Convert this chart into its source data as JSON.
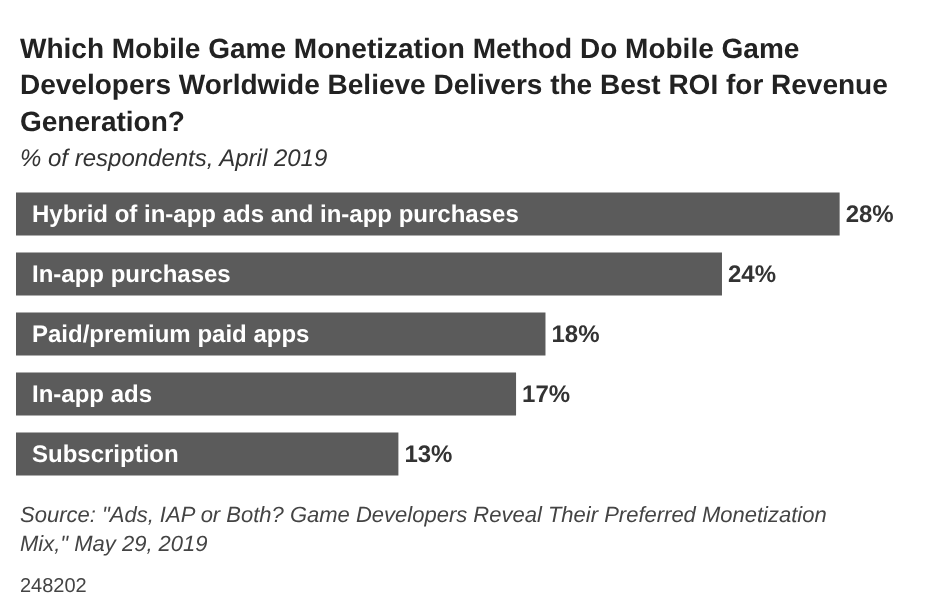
{
  "chart_data": {
    "type": "bar",
    "orientation": "horizontal",
    "title": "Which Mobile Game Monetization Method Do Mobile Game Developers Worldwide Believe Delivers the Best ROI for Revenue Generation?",
    "subtitle": "% of respondents, April 2019",
    "categories": [
      "Hybrid of in-app ads and in-app purchases",
      "In-app purchases",
      "Paid/premium paid apps",
      "In-app ads",
      "Subscription"
    ],
    "values": [
      28,
      24,
      18,
      17,
      13
    ],
    "value_labels": [
      "28%",
      "24%",
      "18%",
      "17%",
      "13%"
    ],
    "color": "#5b5b5b",
    "annotations": [
      "Source: \"Ads, IAP or Both? Game Developers Reveal Their Preferred Monetization Mix,\" May 29, 2019",
      "248202"
    ]
  }
}
